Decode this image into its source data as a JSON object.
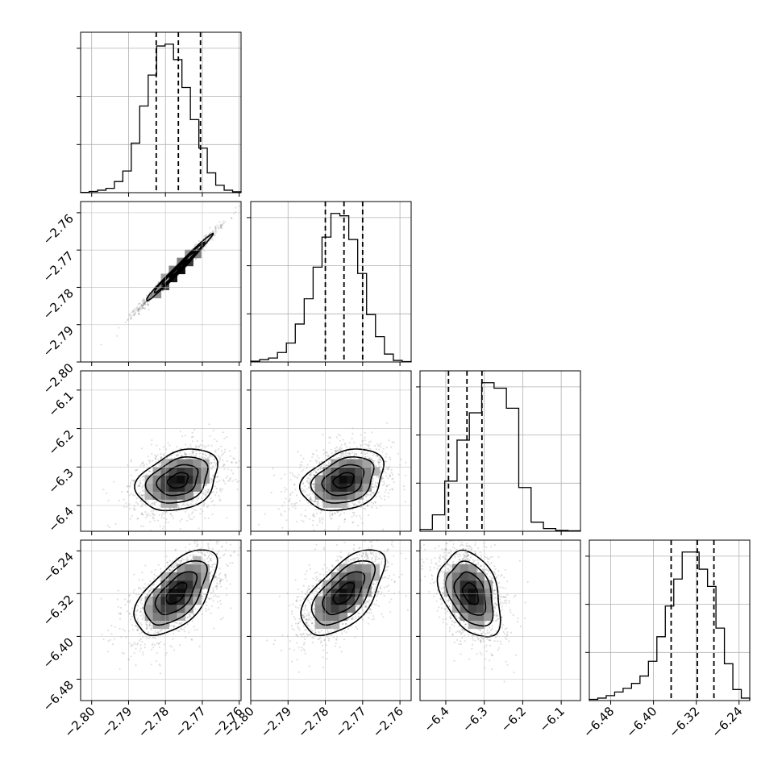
{
  "chart_data": {
    "type": "scatter",
    "kind": "corner-plot",
    "title": "",
    "grid": true,
    "parameters": [
      {
        "index": 0,
        "range": [
          -2.803,
          -2.7595
        ],
        "ticks": [
          -2.8,
          -2.79,
          -2.78,
          -2.77,
          -2.76
        ],
        "tick_labels": [
          "−2.80",
          "−2.79",
          "−2.78",
          "−2.77",
          "−2.76"
        ],
        "quantiles": [
          -2.7825,
          -2.7765,
          -2.7705
        ],
        "hist_counts": [
          0.5,
          2,
          4,
          7,
          18,
          35,
          80,
          140,
          190,
          237,
          240,
          215,
          170,
          118,
          72,
          32,
          12,
          4,
          1.5
        ]
      },
      {
        "index": 1,
        "range": [
          -2.8,
          -2.757
        ],
        "ticks": [
          -2.8,
          -2.79,
          -2.78,
          -2.77,
          -2.76
        ],
        "tick_labels": [
          "−2.80",
          "−2.79",
          "−2.78",
          "−2.77",
          "−2.76"
        ],
        "quantiles": [
          -2.78,
          -2.775,
          -2.77
        ],
        "hist_counts": [
          1,
          3,
          5,
          12,
          24,
          48,
          80,
          120,
          158,
          188,
          185,
          155,
          112,
          60,
          32,
          10,
          2,
          0.5
        ]
      },
      {
        "index": 2,
        "range": [
          -6.467,
          -6.05
        ],
        "ticks": [
          -6.4,
          -6.3,
          -6.2,
          -6.1
        ],
        "tick_labels": [
          "−6.4",
          "−6.3",
          "−6.2",
          "−6.1"
        ],
        "quantiles": [
          -6.393,
          -6.345,
          -6.306
        ],
        "hist_counts": [
          2,
          18,
          55,
          100,
          130,
          163,
          157,
          135,
          48,
          10,
          3,
          1,
          0.5
        ]
      },
      {
        "index": 3,
        "range": [
          -6.52,
          -6.22
        ],
        "ticks": [
          -6.48,
          -6.4,
          -6.32,
          -6.24
        ],
        "tick_labels": [
          "−6.48",
          "−6.40",
          "−6.32",
          "−6.24"
        ],
        "quantiles": [
          -6.367,
          -6.318,
          -6.287
        ],
        "hist_counts": [
          1,
          2,
          4,
          7,
          10,
          14,
          20,
          32,
          52,
          77,
          99,
          121,
          121,
          107,
          93,
          59,
          30,
          9,
          2
        ]
      }
    ],
    "pairs": [
      {
        "x": 0,
        "y": 1,
        "mean": [
          -2.7765,
          -2.775
        ],
        "sd": [
          0.0045,
          0.0045
        ],
        "corr": 0.99
      },
      {
        "x": 0,
        "y": 2,
        "mean": [
          -2.7765,
          -6.335
        ],
        "sd": [
          0.0055,
          0.04
        ],
        "corr": 0.3
      },
      {
        "x": 1,
        "y": 2,
        "mean": [
          -2.775,
          -6.335
        ],
        "sd": [
          0.0055,
          0.04
        ],
        "corr": 0.3
      },
      {
        "x": 0,
        "y": 3,
        "mean": [
          -2.777,
          -6.32
        ],
        "sd": [
          0.0055,
          0.04
        ],
        "corr": 0.6
      },
      {
        "x": 1,
        "y": 3,
        "mean": [
          -2.775,
          -6.32
        ],
        "sd": [
          0.0055,
          0.04
        ],
        "corr": 0.6
      },
      {
        "x": 2,
        "y": 3,
        "mean": [
          -6.335,
          -6.32
        ],
        "sd": [
          0.04,
          0.04
        ],
        "corr": -0.35
      }
    ]
  }
}
